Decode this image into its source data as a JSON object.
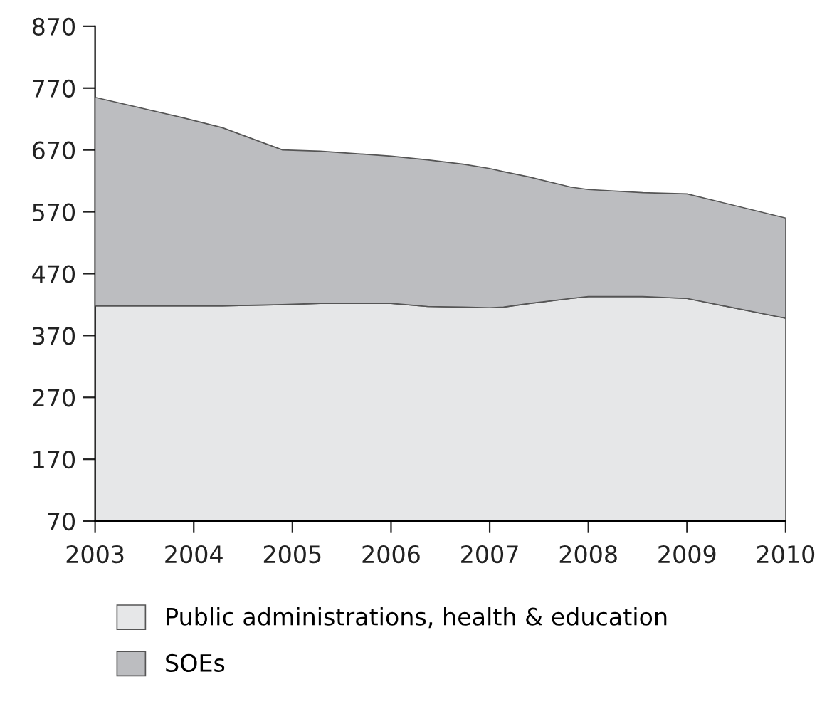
{
  "chart_data": {
    "type": "area",
    "stacked": true,
    "x": [
      2003,
      2003.92,
      2004.29,
      2004.9,
      2005.28,
      2006,
      2006.37,
      2006.73,
      2007,
      2007.14,
      2007.41,
      2007.82,
      2008,
      2008.55,
      2009,
      2010
    ],
    "series": [
      {
        "name": "Public administrations, health & education",
        "color": "#e6e7e8",
        "values": [
          418,
          418,
          418,
          420,
          422,
          422,
          417,
          416,
          415,
          416,
          422,
          430,
          433,
          433,
          430,
          398
        ]
      },
      {
        "name": "SOEs",
        "color": "#bcbdc0",
        "values": [
          337,
          303,
          288,
          250,
          246,
          238,
          237,
          231,
          225,
          219,
          204,
          180,
          173,
          168,
          169,
          162
        ]
      }
    ],
    "xlim": [
      2003,
      2010
    ],
    "xticks": [
      2003,
      2004,
      2005,
      2006,
      2007,
      2008,
      2009,
      2010
    ],
    "ylim": [
      70,
      870
    ],
    "yticks": [
      70,
      170,
      270,
      370,
      470,
      570,
      670,
      770,
      870
    ],
    "grid": false,
    "legend": "bottom"
  }
}
